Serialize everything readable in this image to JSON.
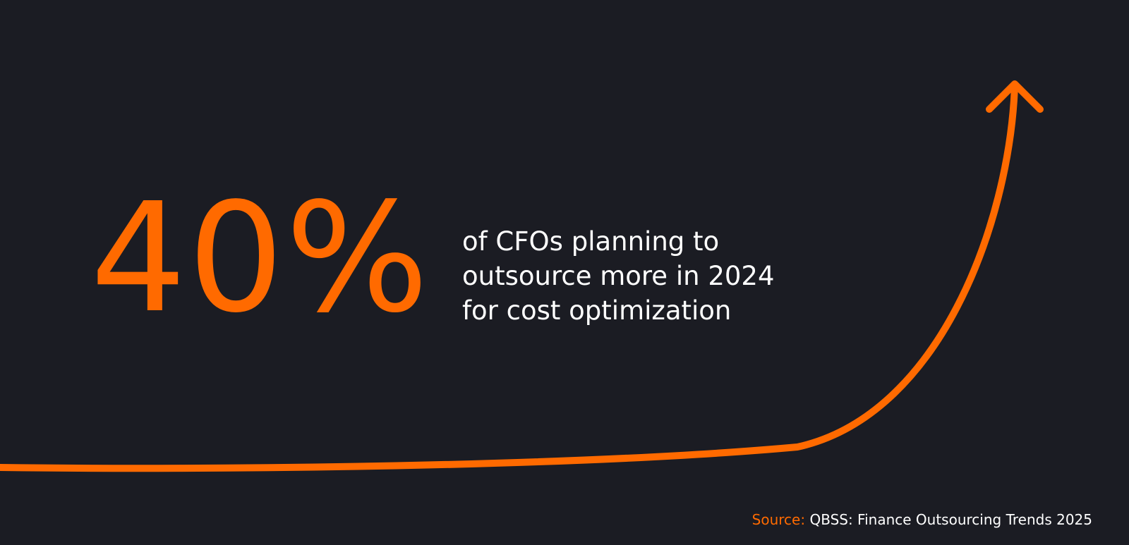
{
  "stat": {
    "value": "40%",
    "caption_lines": [
      "of CFOs planning to",
      "outsource more in 2024",
      "for cost optimization"
    ]
  },
  "source": {
    "label": "Source:",
    "text": "QBSS: Finance Outsourcing Trends 2025"
  },
  "graphic": {
    "icon": "upward-trend-arrow-icon"
  },
  "colors": {
    "background": "#1b1c23",
    "accent": "#ff6a00",
    "text": "#ffffff"
  }
}
